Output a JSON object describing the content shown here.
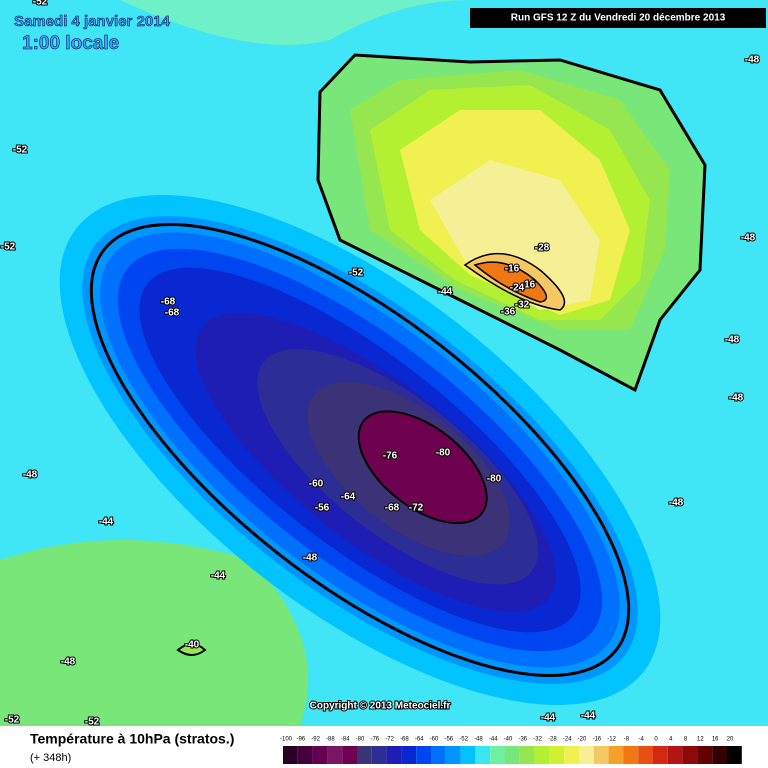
{
  "header": {
    "date": "Samedi 4 janvier 2014",
    "time": "1:00 locale",
    "run": "Run GFS 12 Z du Vendredi 20 décembre 2013"
  },
  "copyright": "Copyright © 2013 Meteociel.fr",
  "footer": {
    "title": "Température à 10hPa (stratos.)",
    "lead": "(+ 348h)"
  },
  "legend": {
    "labels": [
      -100,
      -96,
      -92,
      -88,
      -84,
      -80,
      -76,
      -72,
      -68,
      -64,
      -60,
      -56,
      -52,
      -48,
      -44,
      -40,
      -36,
      -32,
      -28,
      -24,
      -20,
      -16,
      -12,
      -8,
      -4,
      0,
      4,
      8,
      12,
      16,
      20
    ],
    "colors": [
      "#280028",
      "#46003c",
      "#640050",
      "#7a1464",
      "#6e0050",
      "#3c3278",
      "#2d2d96",
      "#1e1eb4",
      "#0a28d2",
      "#0046f0",
      "#0070ff",
      "#0096ff",
      "#00c3ff",
      "#3ce6f0",
      "#6ef0a0",
      "#78e678",
      "#96e650",
      "#b4f032",
      "#d2f032",
      "#f0f050",
      "#f5f096",
      "#f5c864",
      "#f5a028",
      "#f07814",
      "#e65014",
      "#d22814",
      "#b41414",
      "#8c0a0a",
      "#640000",
      "#320000",
      "#000000"
    ]
  },
  "contour_labels": [
    "-52",
    "-52",
    "-52",
    "-48",
    "-48",
    "-48",
    "-48",
    "-48",
    "-48",
    "-44",
    "-44",
    "-48",
    "-48",
    "-52",
    "-52",
    "-40",
    "-44",
    "-44",
    "-52",
    "-68",
    "-68",
    "-76",
    "-80",
    "-80",
    "-60",
    "-64",
    "-56",
    "-68",
    "-72",
    "-28",
    "-16",
    "-16",
    "-24",
    "-32",
    "-36",
    "-44"
  ]
}
